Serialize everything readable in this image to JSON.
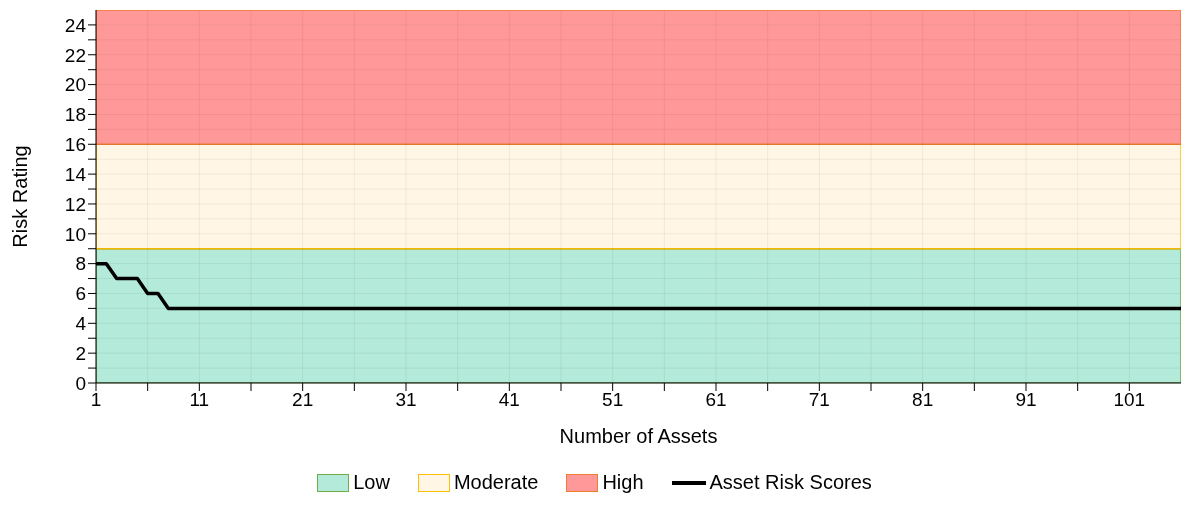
{
  "chart_data": {
    "type": "line",
    "xlabel": "Number of Assets",
    "ylabel": "Risk Rating",
    "x": [
      1,
      2,
      3,
      5,
      6,
      7,
      8,
      106
    ],
    "series": [
      {
        "name": "Asset Risk Scores",
        "color": "#000000",
        "values": [
          8,
          8,
          7,
          7,
          6,
          6,
          5,
          5
        ]
      }
    ],
    "xlim": [
      1,
      106
    ],
    "xticks": [
      1,
      {
        "value": 6,
        "label": null
      },
      11,
      {
        "value": 16,
        "label": null
      },
      21,
      {
        "value": 26,
        "label": null
      },
      31,
      {
        "value": 36,
        "label": null
      },
      41,
      {
        "value": 46,
        "label": null
      },
      51,
      {
        "value": 56,
        "label": null
      },
      61,
      {
        "value": 66,
        "label": null
      },
      71,
      {
        "value": 76,
        "label": null
      },
      81,
      {
        "value": 86,
        "label": null
      },
      91,
      {
        "value": 96,
        "label": null
      },
      101
    ],
    "ylim": [
      0,
      25
    ],
    "yticks": [
      0,
      {
        "value": 1,
        "label": null
      },
      2,
      {
        "value": 3,
        "label": null
      },
      4,
      {
        "value": 5,
        "label": null
      },
      6,
      {
        "value": 7,
        "label": null
      },
      8,
      {
        "value": 9,
        "label": null
      },
      10,
      {
        "value": 11,
        "label": null
      },
      12,
      {
        "value": 13,
        "label": null
      },
      14,
      {
        "value": 15,
        "label": null
      },
      16,
      {
        "value": 17,
        "label": null
      },
      18,
      {
        "value": 19,
        "label": null
      },
      20,
      {
        "value": 21,
        "label": null
      },
      22,
      {
        "value": 23,
        "label": null
      },
      24
    ],
    "bands": [
      {
        "axis": "y",
        "from": 0,
        "to": 9,
        "label": "Low",
        "color": "#b3ead9"
      },
      {
        "axis": "y",
        "from": 9,
        "to": 16,
        "label": "Moderate",
        "color": "#fff6e5"
      },
      {
        "axis": "y",
        "from": 16,
        "to": 25,
        "label": "High",
        "color": "#ff9999"
      }
    ],
    "grid": true,
    "legend": "bottom",
    "marker": "none",
    "line_style": "solid"
  }
}
